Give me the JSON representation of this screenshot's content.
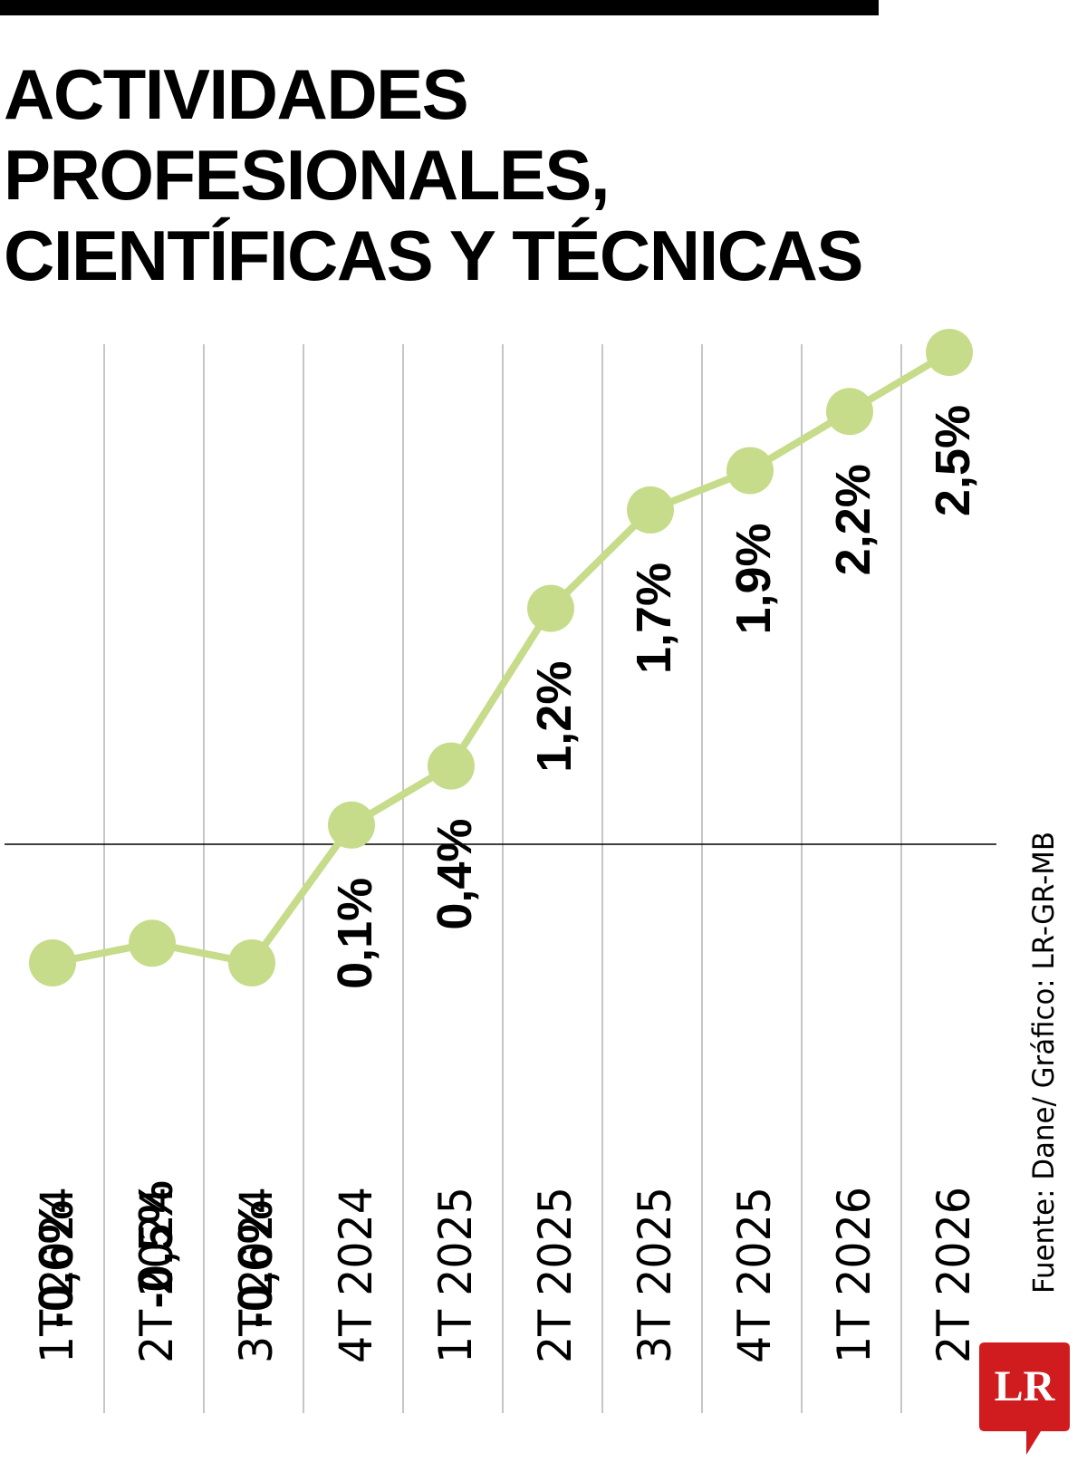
{
  "chart_data": {
    "type": "line",
    "title": "ACTIVIDADES PROFESIONALES, CIENTÍFICAS Y TÉCNICAS",
    "categories": [
      "1T 2024",
      "2T 2024",
      "3T 2024",
      "4T 2024",
      "1T 2025",
      "2T 2025",
      "3T 2025",
      "4T 2025",
      "1T 2026",
      "2T 2026"
    ],
    "values": [
      -0.6,
      -0.5,
      -0.6,
      0.1,
      0.4,
      1.2,
      1.7,
      1.9,
      2.2,
      2.5
    ],
    "value_labels": [
      "-0,6%",
      "-0,5%",
      "-0,6%",
      "0,1%",
      "0,4%",
      "1,2%",
      "1,7%",
      "1,9%",
      "2,2%",
      "2,5%"
    ],
    "xlabel": "",
    "ylabel": "",
    "ylim": [
      -0.6,
      2.5
    ],
    "grid": true,
    "line_color": "#c6dc8a",
    "text_color": "#000000",
    "source": "Fuente: Dane/ Gráfico: LR-GR-MB"
  },
  "logo": {
    "text": "LR",
    "color": "#d01c1f"
  }
}
